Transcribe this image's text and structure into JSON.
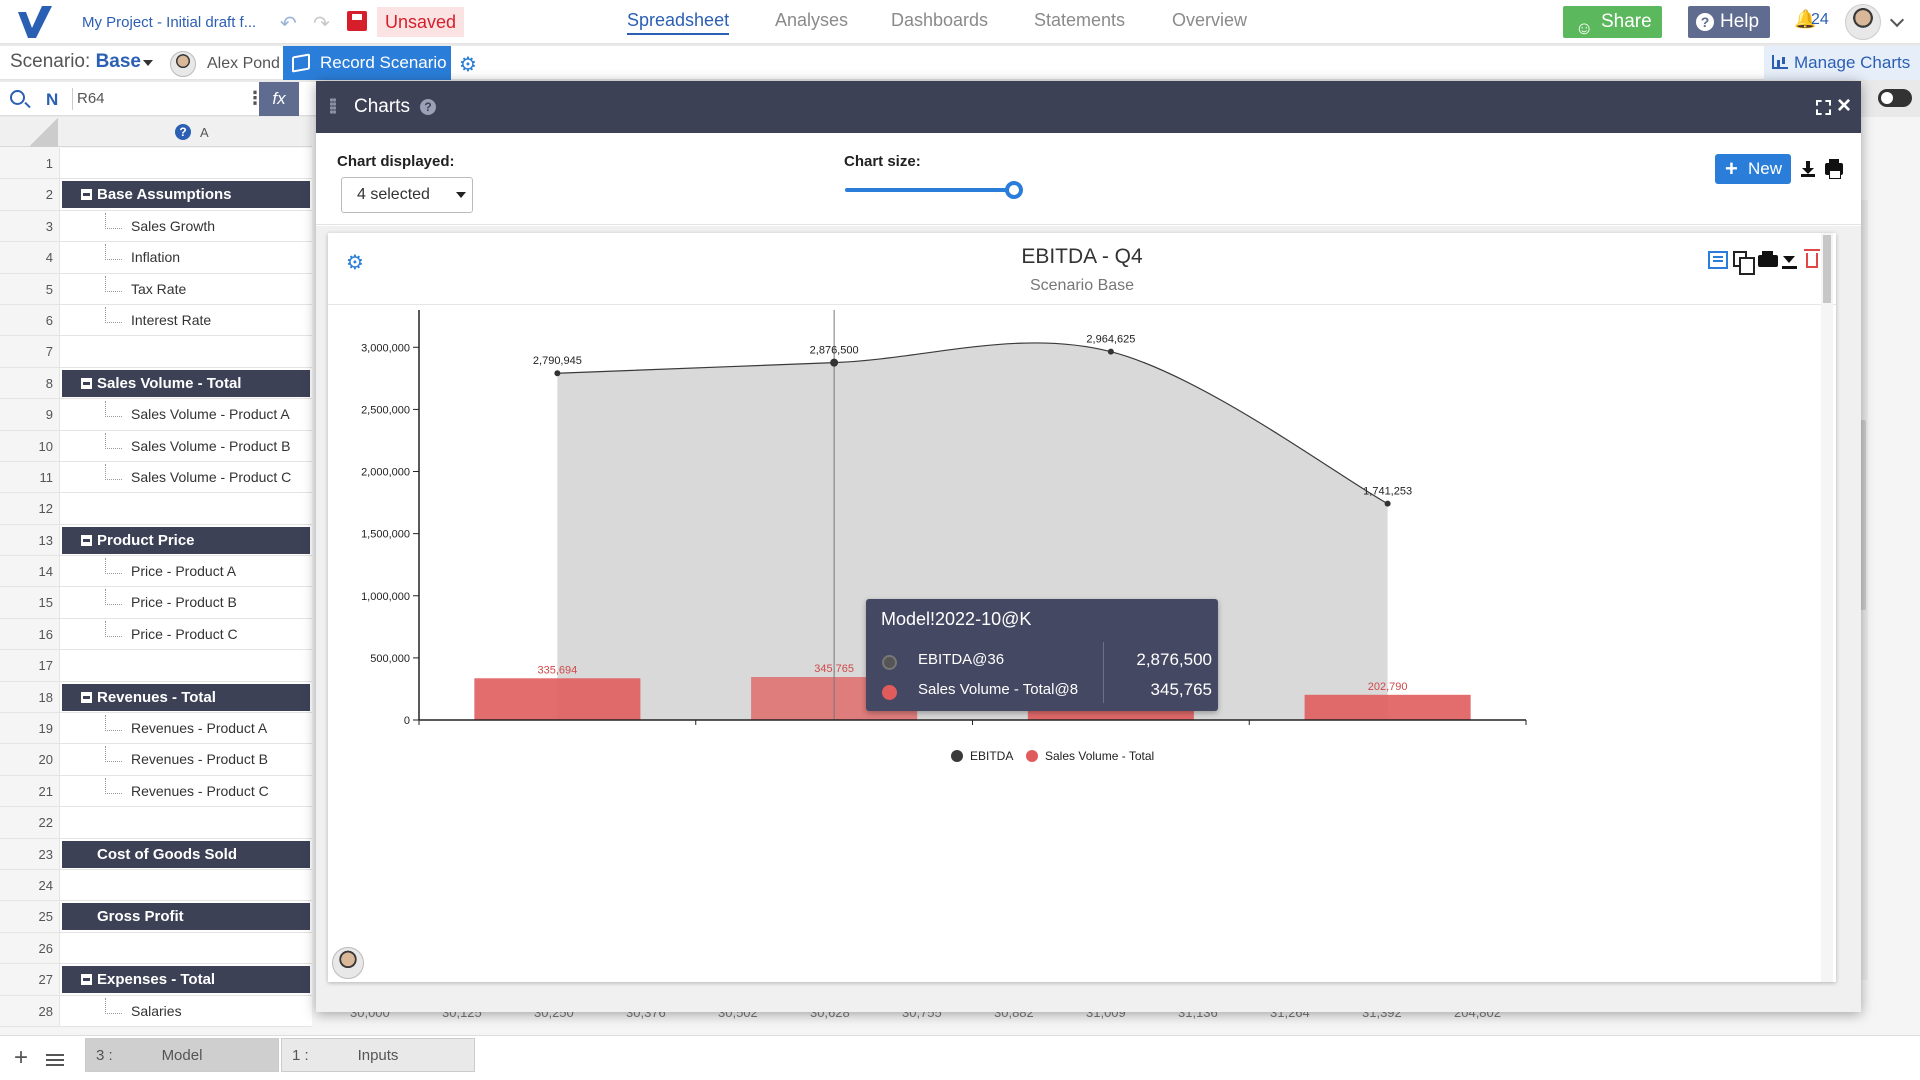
{
  "topbar": {
    "project_name": "My Project - Initial draft f...",
    "unsaved_label": "Unsaved",
    "nav": [
      {
        "label": "Spreadsheet",
        "active": true
      },
      {
        "label": "Analyses",
        "active": false
      },
      {
        "label": "Dashboards",
        "active": false
      },
      {
        "label": "Statements",
        "active": false
      },
      {
        "label": "Overview",
        "active": false
      }
    ],
    "share_label": "Share",
    "help_label": "Help",
    "notifications_count": "24"
  },
  "bar2": {
    "scenario_prefix": "Scenario:",
    "scenario_value": "Base",
    "user_name": "Alex Pond",
    "record_label": "Record Scenario",
    "manage_charts_label": "Manage Charts"
  },
  "formula_bar": {
    "name_label": "N",
    "cell_ref": "R64",
    "fx_label": "fx"
  },
  "sheet": {
    "column_label": "A",
    "rows": [
      {
        "n": "1",
        "label": "",
        "type": "blank"
      },
      {
        "n": "2",
        "label": "Base Assumptions",
        "type": "header"
      },
      {
        "n": "3",
        "label": "Sales Growth",
        "type": "child"
      },
      {
        "n": "4",
        "label": "Inflation",
        "type": "child"
      },
      {
        "n": "5",
        "label": "Tax Rate",
        "type": "child"
      },
      {
        "n": "6",
        "label": "Interest Rate",
        "type": "child"
      },
      {
        "n": "7",
        "label": "",
        "type": "blank"
      },
      {
        "n": "8",
        "label": "Sales Volume - Total",
        "type": "header"
      },
      {
        "n": "9",
        "label": "Sales Volume - Product A",
        "type": "child"
      },
      {
        "n": "10",
        "label": "Sales Volume - Product B",
        "type": "child"
      },
      {
        "n": "11",
        "label": "Sales Volume - Product C",
        "type": "child"
      },
      {
        "n": "12",
        "label": "",
        "type": "blank"
      },
      {
        "n": "13",
        "label": "Product Price",
        "type": "header"
      },
      {
        "n": "14",
        "label": "Price - Product A",
        "type": "child"
      },
      {
        "n": "15",
        "label": "Price - Product B",
        "type": "child"
      },
      {
        "n": "16",
        "label": "Price - Product C",
        "type": "child"
      },
      {
        "n": "17",
        "label": "",
        "type": "blank"
      },
      {
        "n": "18",
        "label": "Revenues - Total",
        "type": "header"
      },
      {
        "n": "19",
        "label": "Revenues - Product A",
        "type": "child"
      },
      {
        "n": "20",
        "label": "Revenues - Product B",
        "type": "child"
      },
      {
        "n": "21",
        "label": "Revenues - Product C",
        "type": "child"
      },
      {
        "n": "22",
        "label": "",
        "type": "blank"
      },
      {
        "n": "23",
        "label": "Cost of Goods Sold",
        "type": "flat"
      },
      {
        "n": "24",
        "label": "",
        "type": "blank"
      },
      {
        "n": "25",
        "label": "Gross Profit",
        "type": "flat"
      },
      {
        "n": "26",
        "label": "",
        "type": "blank"
      },
      {
        "n": "27",
        "label": "Expenses - Total",
        "type": "header"
      },
      {
        "n": "28",
        "label": "Salaries",
        "type": "child"
      }
    ],
    "bottom_values": [
      "30,000",
      "30,125",
      "30,250",
      "30,376",
      "30,502",
      "30,628",
      "30,755",
      "30,882",
      "31,009",
      "31,136",
      "31,264",
      "31,392",
      "204,802"
    ]
  },
  "tabs": [
    {
      "num": "3 :",
      "label": "Model",
      "active": true
    },
    {
      "num": "1 :",
      "label": "Inputs",
      "active": false
    }
  ],
  "modal": {
    "title": "Charts",
    "chart_displayed_label": "Chart displayed:",
    "chart_displayed_value": "4 selected",
    "chart_size_label": "Chart size:",
    "chart_size_fraction": 1.0,
    "new_label": "New"
  },
  "tooltip": {
    "title": "Model!2022-10@K",
    "rows": [
      {
        "name": "EBITDA@36",
        "value": "2,876,500",
        "color": "#555555"
      },
      {
        "name": "Sales Volume - Total@8",
        "value": "345,765",
        "color": "#e05c5c"
      }
    ]
  },
  "chart_data": {
    "type": "bar",
    "title": "EBITDA - Q4",
    "subtitle": "Scenario Base",
    "categories": [
      "",
      "",
      "",
      ""
    ],
    "ylim": [
      0,
      3300000
    ],
    "yticks": [
      0,
      500000,
      1000000,
      1500000,
      2000000,
      2500000,
      3000000
    ],
    "ytick_labels": [
      "0",
      "500,000",
      "1,000,000",
      "1,500,000",
      "2,000,000",
      "2,500,000",
      "3,000,000"
    ],
    "grid": false,
    "legend": "bottom-center",
    "series": [
      {
        "name": "EBITDA",
        "type": "area",
        "color": "#3a3a3a",
        "fill": "#d9d9d9",
        "values": [
          2790945,
          2876500,
          2964625,
          1741253
        ],
        "labels": [
          "2,790,945",
          "2,876,500",
          "2,964,625",
          "1,741,253"
        ]
      },
      {
        "name": "Sales Volume - Total",
        "type": "bar",
        "color": "#e05c5c",
        "values": [
          335694,
          345765,
          356138,
          202790
        ],
        "labels": [
          "335,694",
          "345,765",
          "356,138",
          "202,790"
        ]
      }
    ]
  }
}
